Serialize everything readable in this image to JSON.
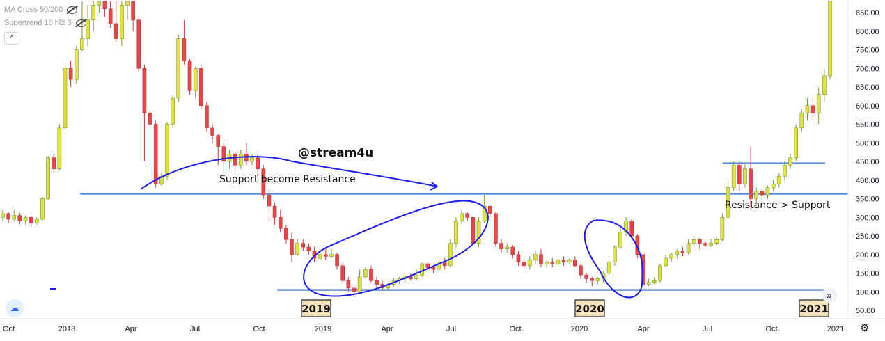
{
  "legend": {
    "ma_cross": "MA Cross 50/200",
    "supertrend": "Supertrend 10 hl2 3"
  },
  "chart_data": {
    "type": "candlestick",
    "annotations": {
      "watermark": "@stream4u",
      "support_label": "Support become Resistance",
      "resistance_label": "Resistance > Support",
      "year_boxes": [
        "2019",
        "2020",
        "2021"
      ]
    },
    "y_axis": {
      "ticks": [
        850,
        800,
        750,
        700,
        650,
        600,
        550,
        500,
        450,
        400,
        350,
        300,
        250,
        200,
        150,
        100,
        50
      ],
      "tick_labels": [
        "850.00",
        "800.00",
        "750.00",
        "700.00",
        "650.00",
        "600.00",
        "550.00",
        "500.00",
        "450.00",
        "400.00",
        "350.00",
        "300.00",
        "250.00",
        "200.00",
        "150.00",
        "100.00",
        "50.00"
      ],
      "ylim": [
        30,
        880
      ]
    },
    "x_axis": {
      "tick_labels": [
        "Oct",
        "2018",
        "Apr",
        "Jul",
        "Oct",
        "2019",
        "Apr",
        "Jul",
        "Oct",
        "2020",
        "Apr",
        "Jul",
        "Oct",
        "2021"
      ]
    },
    "levels": [
      {
        "name": "support-resistance",
        "value": 363
      },
      {
        "name": "bottom-support",
        "value": 105
      },
      {
        "name": "upper-resistance",
        "value": 445
      }
    ],
    "candles": [
      [
        300,
        310,
        320,
        290
      ],
      [
        310,
        295,
        315,
        285
      ],
      [
        295,
        305,
        320,
        290
      ],
      [
        305,
        290,
        312,
        282
      ],
      [
        290,
        300,
        305,
        280
      ],
      [
        300,
        285,
        303,
        275
      ],
      [
        285,
        295,
        300,
        280
      ],
      [
        295,
        350,
        355,
        290
      ],
      [
        350,
        460,
        465,
        345
      ],
      [
        460,
        430,
        470,
        420
      ],
      [
        430,
        540,
        550,
        425
      ],
      [
        540,
        700,
        710,
        535
      ],
      [
        700,
        670,
        720,
        650
      ],
      [
        670,
        750,
        760,
        660
      ],
      [
        750,
        780,
        880,
        745
      ],
      [
        780,
        830,
        870,
        760
      ],
      [
        830,
        870,
        880,
        800
      ],
      [
        870,
        880,
        880,
        850
      ],
      [
        880,
        860,
        880,
        840
      ],
      [
        860,
        820,
        880,
        810
      ],
      [
        820,
        780,
        880,
        770
      ],
      [
        780,
        870,
        880,
        760
      ],
      [
        870,
        880,
        880,
        830
      ],
      [
        880,
        830,
        880,
        800
      ],
      [
        830,
        700,
        840,
        690
      ],
      [
        700,
        580,
        710,
        450
      ],
      [
        580,
        550,
        590,
        440
      ],
      [
        550,
        390,
        560,
        380
      ],
      [
        390,
        410,
        420,
        385
      ],
      [
        410,
        550,
        555,
        400
      ],
      [
        550,
        620,
        630,
        540
      ],
      [
        620,
        780,
        790,
        610
      ],
      [
        780,
        720,
        830,
        710
      ],
      [
        720,
        640,
        725,
        630
      ],
      [
        640,
        700,
        705,
        620
      ],
      [
        700,
        600,
        710,
        590
      ],
      [
        600,
        540,
        610,
        530
      ],
      [
        540,
        520,
        550,
        500
      ],
      [
        520,
        490,
        525,
        440
      ],
      [
        490,
        450,
        500,
        420
      ],
      [
        450,
        470,
        480,
        430
      ],
      [
        470,
        440,
        475,
        430
      ],
      [
        440,
        470,
        480,
        430
      ],
      [
        470,
        450,
        500,
        440
      ],
      [
        450,
        460,
        470,
        440
      ],
      [
        460,
        430,
        470,
        410
      ],
      [
        430,
        360,
        440,
        350
      ],
      [
        360,
        330,
        370,
        290
      ],
      [
        330,
        300,
        340,
        280
      ],
      [
        300,
        270,
        320,
        260
      ],
      [
        270,
        240,
        280,
        230
      ],
      [
        240,
        200,
        260,
        180
      ],
      [
        200,
        230,
        240,
        195
      ],
      [
        230,
        220,
        240,
        210
      ],
      [
        220,
        210,
        230,
        200
      ],
      [
        210,
        190,
        220,
        180
      ],
      [
        190,
        200,
        215,
        185
      ],
      [
        200,
        195,
        220,
        185
      ],
      [
        195,
        200,
        215,
        190
      ],
      [
        200,
        170,
        205,
        160
      ],
      [
        170,
        130,
        180,
        125
      ],
      [
        130,
        110,
        140,
        100
      ],
      [
        110,
        100,
        120,
        85
      ],
      [
        100,
        140,
        160,
        95
      ],
      [
        140,
        160,
        165,
        135
      ],
      [
        160,
        130,
        170,
        125
      ],
      [
        130,
        120,
        140,
        110
      ],
      [
        120,
        110,
        130,
        105
      ],
      [
        110,
        120,
        125,
        105
      ],
      [
        120,
        130,
        135,
        115
      ],
      [
        130,
        135,
        140,
        120
      ],
      [
        135,
        140,
        145,
        125
      ],
      [
        140,
        135,
        150,
        130
      ],
      [
        135,
        145,
        160,
        130
      ],
      [
        145,
        175,
        180,
        140
      ],
      [
        175,
        165,
        180,
        155
      ],
      [
        165,
        160,
        170,
        150
      ],
      [
        160,
        180,
        185,
        155
      ],
      [
        180,
        170,
        190,
        160
      ],
      [
        170,
        230,
        240,
        165
      ],
      [
        230,
        290,
        300,
        220
      ],
      [
        290,
        310,
        320,
        280
      ],
      [
        310,
        300,
        315,
        290
      ],
      [
        300,
        230,
        305,
        220
      ],
      [
        230,
        290,
        300,
        220
      ],
      [
        290,
        330,
        360,
        285
      ],
      [
        330,
        310,
        335,
        300
      ],
      [
        310,
        230,
        315,
        220
      ],
      [
        230,
        215,
        240,
        205
      ],
      [
        215,
        220,
        230,
        205
      ],
      [
        220,
        200,
        225,
        190
      ],
      [
        200,
        180,
        210,
        170
      ],
      [
        180,
        170,
        190,
        160
      ],
      [
        170,
        185,
        195,
        160
      ],
      [
        185,
        200,
        210,
        175
      ],
      [
        200,
        175,
        215,
        165
      ],
      [
        175,
        180,
        185,
        165
      ],
      [
        180,
        175,
        190,
        165
      ],
      [
        175,
        185,
        190,
        170
      ],
      [
        185,
        180,
        195,
        170
      ],
      [
        180,
        185,
        190,
        175
      ],
      [
        185,
        170,
        195,
        165
      ],
      [
        170,
        145,
        175,
        135
      ],
      [
        145,
        135,
        150,
        125
      ],
      [
        135,
        130,
        140,
        115
      ],
      [
        130,
        135,
        140,
        120
      ],
      [
        135,
        150,
        155,
        125
      ],
      [
        150,
        180,
        185,
        145
      ],
      [
        180,
        220,
        225,
        170
      ],
      [
        220,
        260,
        270,
        215
      ],
      [
        260,
        290,
        300,
        250
      ],
      [
        290,
        250,
        295,
        240
      ],
      [
        250,
        200,
        255,
        190
      ],
      [
        200,
        120,
        210,
        90
      ],
      [
        120,
        125,
        135,
        115
      ],
      [
        125,
        130,
        140,
        120
      ],
      [
        130,
        170,
        175,
        125
      ],
      [
        170,
        190,
        200,
        165
      ],
      [
        190,
        200,
        205,
        180
      ],
      [
        200,
        210,
        215,
        190
      ],
      [
        210,
        205,
        220,
        195
      ],
      [
        205,
        230,
        240,
        200
      ],
      [
        230,
        240,
        250,
        220
      ],
      [
        240,
        230,
        245,
        215
      ],
      [
        230,
        225,
        235,
        220
      ],
      [
        225,
        230,
        240,
        220
      ],
      [
        230,
        240,
        245,
        225
      ],
      [
        240,
        300,
        310,
        235
      ],
      [
        300,
        380,
        400,
        295
      ],
      [
        380,
        440,
        450,
        370
      ],
      [
        440,
        390,
        450,
        370
      ],
      [
        390,
        430,
        445,
        380
      ],
      [
        430,
        350,
        490,
        320
      ],
      [
        350,
        370,
        380,
        330
      ],
      [
        370,
        360,
        375,
        340
      ],
      [
        360,
        380,
        385,
        350
      ],
      [
        380,
        390,
        400,
        370
      ],
      [
        390,
        410,
        420,
        380
      ],
      [
        410,
        440,
        450,
        400
      ],
      [
        440,
        460,
        470,
        430
      ],
      [
        460,
        540,
        550,
        450
      ],
      [
        540,
        580,
        590,
        530
      ],
      [
        580,
        600,
        620,
        560
      ],
      [
        600,
        580,
        620,
        560
      ],
      [
        580,
        630,
        650,
        550
      ],
      [
        630,
        680,
        700,
        610
      ],
      [
        680,
        880,
        880,
        670
      ]
    ]
  }
}
